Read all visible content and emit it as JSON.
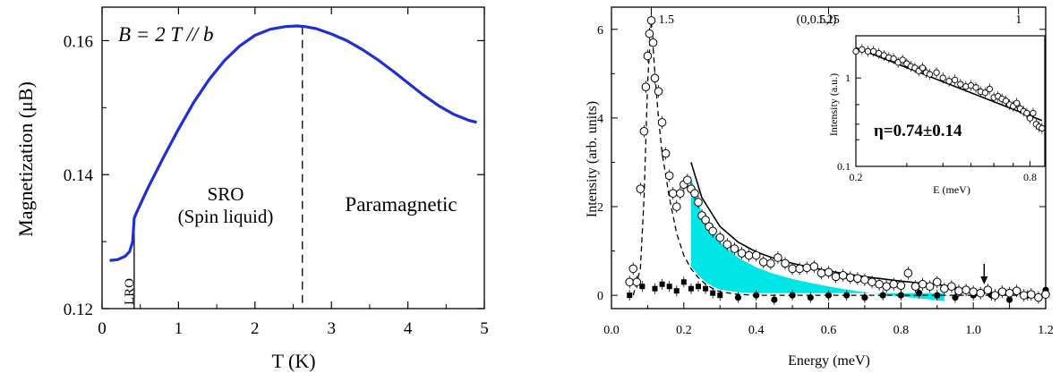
{
  "chart_data": [
    {
      "type": "line",
      "title": "",
      "annotation": "B = 2 T // b",
      "xlabel": "T (K)",
      "ylabel": "Magnetization (μB)",
      "xlim": [
        0,
        5
      ],
      "ylim": [
        0.12,
        0.165
      ],
      "xticks": [
        "0",
        "1",
        "2",
        "3",
        "4",
        "5"
      ],
      "yticks": [
        "0.12",
        "0.14",
        "0.16"
      ],
      "regions": [
        "LRO",
        "SRO",
        "(Spin liquid)",
        "Paramagnetic"
      ],
      "transition_lines": [
        0.42,
        2.62
      ],
      "series": [
        {
          "color": "#1f2fd6",
          "x": [
            0.1,
            0.2,
            0.3,
            0.36,
            0.4,
            0.42,
            0.45,
            0.6,
            0.8,
            1.0,
            1.2,
            1.4,
            1.6,
            1.8,
            2.0,
            2.2,
            2.4,
            2.55,
            2.65,
            2.8,
            3.0,
            3.2,
            3.4,
            3.6,
            3.8,
            4.0,
            4.2,
            4.4,
            4.6,
            4.8,
            4.9
          ],
          "y": [
            0.1272,
            0.1273,
            0.1278,
            0.1285,
            0.13,
            0.1335,
            0.1343,
            0.138,
            0.1425,
            0.1468,
            0.1508,
            0.1542,
            0.157,
            0.1592,
            0.1608,
            0.1617,
            0.1621,
            0.1622,
            0.1621,
            0.1618,
            0.161,
            0.16,
            0.1587,
            0.1572,
            0.1555,
            0.1537,
            0.1519,
            0.1503,
            0.149,
            0.1481,
            0.1478
          ]
        }
      ]
    },
    {
      "type": "scatter",
      "title": "",
      "xlabel": "Energy (meV)",
      "ylabel": "Intensity (arb. units)",
      "xlim": [
        0,
        1.2
      ],
      "ylim": [
        -0.3,
        6.5
      ],
      "xticks": [
        "0.0",
        "0.2",
        "0.4",
        "0.6",
        "0.8",
        "1.0",
        "1.2"
      ],
      "yticks": [
        "0",
        "2",
        "4",
        "6"
      ],
      "top_axis_label": "(0,0.5,l)",
      "top_ticks": [
        "1.5",
        "1.25",
        "1"
      ],
      "arrow_at_energy": 1.03,
      "fill_color": "#00e6e6",
      "series": [
        {
          "name": "open",
          "style": "open-circle",
          "x": [
            0.05,
            0.06,
            0.07,
            0.08,
            0.09,
            0.095,
            0.1,
            0.105,
            0.11,
            0.115,
            0.12,
            0.13,
            0.14,
            0.15,
            0.16,
            0.17,
            0.18,
            0.19,
            0.2,
            0.21,
            0.22,
            0.23,
            0.24,
            0.25,
            0.26,
            0.27,
            0.28,
            0.3,
            0.32,
            0.34,
            0.36,
            0.38,
            0.4,
            0.42,
            0.44,
            0.46,
            0.48,
            0.5,
            0.52,
            0.54,
            0.56,
            0.58,
            0.6,
            0.62,
            0.64,
            0.66,
            0.68,
            0.7,
            0.72,
            0.74,
            0.76,
            0.78,
            0.8,
            0.82,
            0.84,
            0.86,
            0.88,
            0.9,
            0.92,
            0.94,
            0.96,
            0.98,
            1.0,
            1.02,
            1.04,
            1.06,
            1.08,
            1.1,
            1.12,
            1.14,
            1.16,
            1.18,
            1.2
          ],
          "y": [
            0.3,
            0.6,
            0.3,
            2.4,
            3.7,
            4.7,
            5.4,
            5.9,
            6.2,
            5.7,
            4.9,
            4.6,
            3.9,
            3.2,
            2.7,
            2.3,
            2.0,
            2.3,
            2.5,
            2.6,
            2.4,
            2.3,
            2.1,
            1.8,
            1.7,
            1.55,
            1.45,
            1.3,
            1.15,
            1.05,
            0.95,
            0.9,
            0.9,
            0.75,
            0.72,
            0.85,
            0.72,
            0.6,
            0.6,
            0.62,
            0.65,
            0.5,
            0.52,
            0.42,
            0.45,
            0.4,
            0.38,
            0.35,
            0.3,
            0.25,
            0.2,
            0.25,
            0.22,
            0.5,
            0.2,
            0.25,
            0.2,
            0.3,
            0.15,
            0.2,
            0.1,
            0.12,
            0.08,
            0.05,
            0.12,
            0.0,
            0.08,
            0.05,
            0.1,
            0.0,
            0.02,
            -0.05,
            0.02
          ]
        },
        {
          "name": "filled",
          "style": "filled-marker",
          "x": [
            0.05,
            0.07,
            0.085,
            0.12,
            0.14,
            0.16,
            0.18,
            0.2,
            0.22,
            0.24,
            0.26,
            0.28,
            0.3,
            0.35,
            0.4,
            0.45,
            0.5,
            0.55,
            0.6,
            0.65,
            0.7,
            0.75,
            0.8,
            0.85,
            0.9,
            0.95,
            1.0,
            1.05,
            1.1,
            1.15,
            1.2
          ],
          "y": [
            0.0,
            0.3,
            0.2,
            0.15,
            0.25,
            0.2,
            0.1,
            0.3,
            0.15,
            0.2,
            0.15,
            0.05,
            0.0,
            -0.05,
            0.0,
            -0.1,
            0.0,
            -0.05,
            0.0,
            0.0,
            -0.05,
            0.0,
            0.0,
            0.05,
            0.0,
            -0.05,
            0.0,
            0.0,
            -0.1,
            0.0,
            0.12
          ]
        }
      ],
      "fit_solid": {
        "x": [
          0.22,
          0.25,
          0.3,
          0.35,
          0.4,
          0.45,
          0.5,
          0.55,
          0.6,
          0.65,
          0.7,
          0.75,
          0.8,
          0.85,
          0.9,
          0.95,
          1.0,
          1.02
        ],
        "y": [
          3.0,
          2.2,
          1.55,
          1.2,
          0.98,
          0.83,
          0.72,
          0.63,
          0.55,
          0.48,
          0.42,
          0.37,
          0.32,
          0.28,
          0.24,
          0.18,
          0.08,
          0.02
        ]
      },
      "fit_dashed": {
        "x": [
          0.06,
          0.08,
          0.09,
          0.1,
          0.11,
          0.12,
          0.13,
          0.14,
          0.16,
          0.18,
          0.2,
          0.22,
          0.24,
          0.26,
          0.28,
          0.3,
          0.35,
          0.4,
          0.6,
          0.8,
          1.0,
          1.2
        ],
        "y": [
          0.0,
          0.6,
          2.2,
          4.8,
          6.2,
          5.0,
          4.0,
          3.2,
          2.2,
          1.4,
          0.9,
          0.6,
          0.4,
          0.25,
          0.15,
          0.08,
          0.02,
          0.0,
          0.0,
          0.0,
          0.0,
          0.0
        ]
      }
    },
    {
      "type": "scatter",
      "title": "",
      "xlabel": "E (meV)",
      "ylabel": "Intensity (a.u.)",
      "log_scale": true,
      "xlim": [
        0.2,
        0.9
      ],
      "ylim": [
        0.1,
        3
      ],
      "xticks": [
        "0.2",
        "0.8"
      ],
      "yticks": [
        "0.1",
        "1"
      ],
      "annotation": "η=0.74±0.14",
      "series": [
        {
          "name": "open",
          "style": "open-circle",
          "x": [
            0.2,
            0.21,
            0.22,
            0.23,
            0.24,
            0.25,
            0.26,
            0.27,
            0.28,
            0.29,
            0.3,
            0.31,
            0.32,
            0.33,
            0.34,
            0.35,
            0.36,
            0.38,
            0.4,
            0.42,
            0.44,
            0.46,
            0.48,
            0.5,
            0.52,
            0.54,
            0.56,
            0.58,
            0.6,
            0.62,
            0.64,
            0.66,
            0.68,
            0.7,
            0.72,
            0.74,
            0.76,
            0.78,
            0.8,
            0.82,
            0.84,
            0.86,
            0.88
          ],
          "y": [
            2.0,
            2.1,
            2.0,
            2.0,
            1.9,
            1.8,
            1.7,
            1.65,
            1.5,
            1.6,
            1.45,
            1.35,
            1.3,
            1.2,
            1.3,
            1.15,
            1.1,
            1.15,
            1.0,
            0.92,
            0.95,
            0.85,
            0.8,
            0.82,
            0.78,
            0.7,
            0.68,
            0.75,
            0.6,
            0.62,
            0.58,
            0.55,
            0.5,
            0.48,
            0.52,
            0.45,
            0.42,
            0.4,
            0.35,
            0.4,
            0.3,
            0.28,
            0.27
          ]
        }
      ],
      "fit": {
        "x": [
          0.2,
          0.88
        ],
        "y": [
          2.2,
          0.33
        ]
      }
    }
  ]
}
